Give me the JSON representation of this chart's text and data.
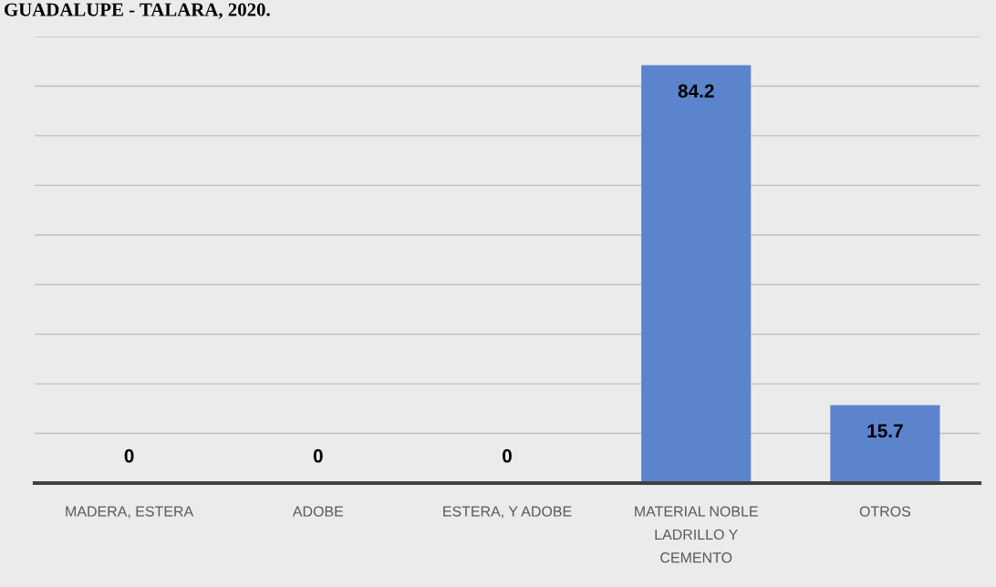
{
  "chart_data": {
    "type": "bar",
    "title": "GUADALUPE - TALARA, 2020.",
    "categories": [
      "MADERA, ESTERA",
      "ADOBE",
      "ESTERA, Y ADOBE",
      "MATERIAL NOBLE LADRILLO Y CEMENTO",
      "OTROS"
    ],
    "values": [
      0,
      0,
      0,
      84.2,
      15.7
    ],
    "color": "#5b84cc",
    "ylim": [
      0,
      90
    ],
    "yticks": [
      {
        "value": 10,
        "label": null
      },
      {
        "value": 20,
        "label": null
      },
      {
        "value": 30,
        "label": null
      },
      {
        "value": 40,
        "label": null
      },
      {
        "value": 50,
        "label": null
      },
      {
        "value": 60,
        "label": null
      },
      {
        "value": 70,
        "label": null
      },
      {
        "value": 80,
        "label": null
      },
      {
        "value": 90,
        "label": null
      }
    ],
    "grid": "y",
    "data_labels": true,
    "tick_labels": "x"
  }
}
